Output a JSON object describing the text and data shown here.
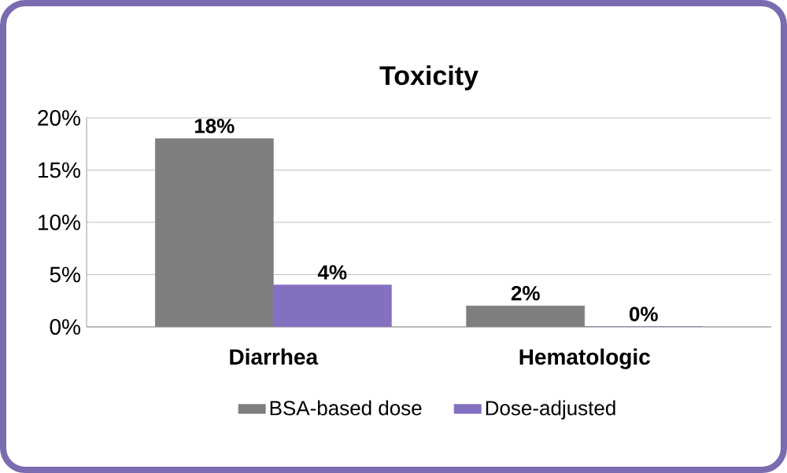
{
  "chart_data": {
    "type": "bar",
    "title": "Toxicity",
    "categories": [
      "Diarrhea",
      "Hematologic"
    ],
    "series": [
      {
        "name": "BSA-based dose",
        "color": "#7f7f7f",
        "values": [
          18,
          2
        ],
        "value_labels": [
          "18%",
          "2%"
        ]
      },
      {
        "name": "Dose-adjusted",
        "color": "#8470c0",
        "values": [
          4,
          0
        ],
        "value_labels": [
          "4%",
          "0%"
        ]
      }
    ],
    "ylim": [
      0,
      20
    ],
    "yticks": [
      {
        "value": 0,
        "label": "0%"
      },
      {
        "value": 5,
        "label": "5%"
      },
      {
        "value": 10,
        "label": "10%"
      },
      {
        "value": 15,
        "label": "15%"
      },
      {
        "value": 20,
        "label": "20%"
      }
    ],
    "grid": "y",
    "legend": "bottom"
  }
}
